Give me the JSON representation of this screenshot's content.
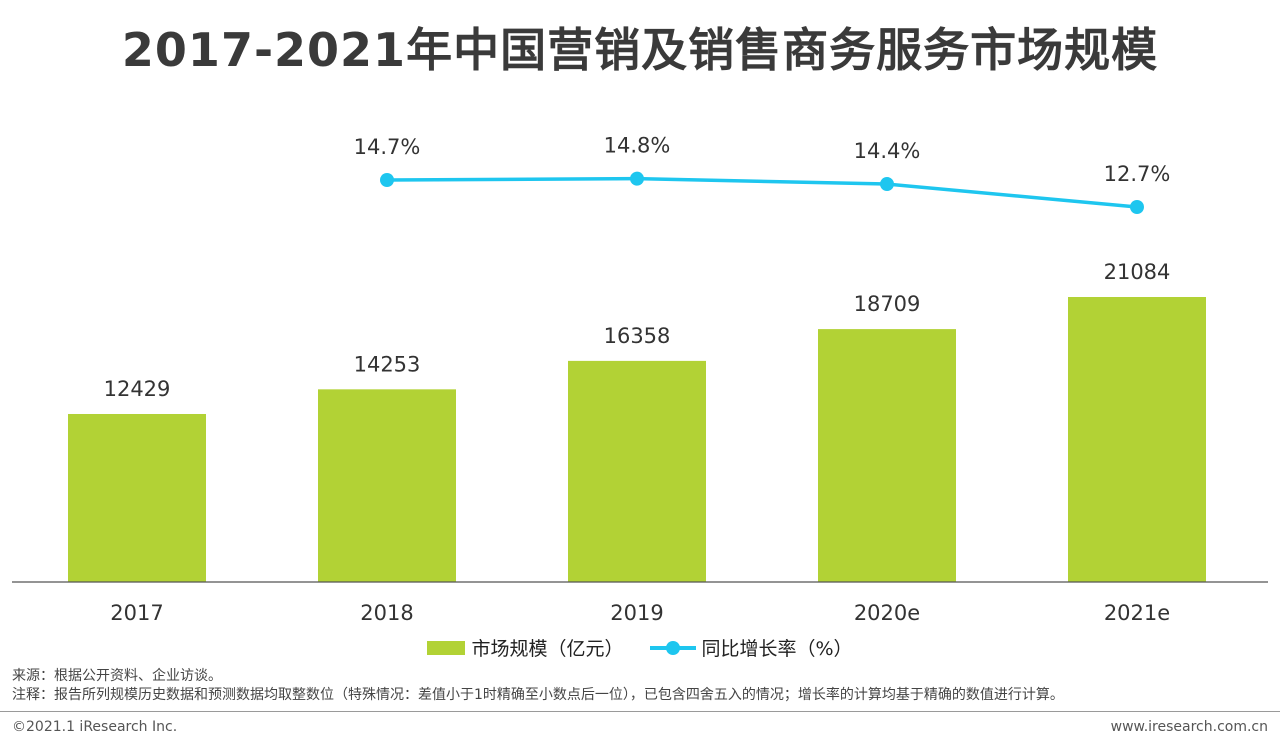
{
  "title": "2017-2021年中国营销及销售商务服务市场规模",
  "colors": {
    "bar": "#b2d235",
    "line": "#1ec6ef",
    "axis": "#555555"
  },
  "chart_data": {
    "type": "bar",
    "categories": [
      "2017",
      "2018",
      "2019",
      "2020e",
      "2021e"
    ],
    "series": [
      {
        "name": "市场规模（亿元）",
        "type": "bar",
        "values": [
          12429,
          14253,
          16358,
          18709,
          21084
        ],
        "labels": [
          "12429",
          "14253",
          "16358",
          "18709",
          "21084"
        ]
      },
      {
        "name": "同比增长率（%）",
        "type": "line",
        "values": [
          null,
          14.7,
          14.8,
          14.4,
          12.7
        ],
        "labels": [
          "",
          "14.7%",
          "14.8%",
          "14.4%",
          "12.7%"
        ]
      }
    ],
    "legend_position": "bottom",
    "grid": false
  },
  "legend": {
    "bar_label": "市场规模（亿元）",
    "line_label": "同比增长率（%）"
  },
  "notes": {
    "source": "来源：根据公开资料、企业访谈。",
    "note": "注释：报告所列规模历史数据和预测数据均取整数位（特殊情况：差值小于1时精确至小数点后一位），已包含四舍五入的情况；增长率的计算均基于精确的数值进行计算。"
  },
  "footer": {
    "copyright": "©2021.1 iResearch Inc.",
    "website": "www.iresearch.com.cn"
  }
}
